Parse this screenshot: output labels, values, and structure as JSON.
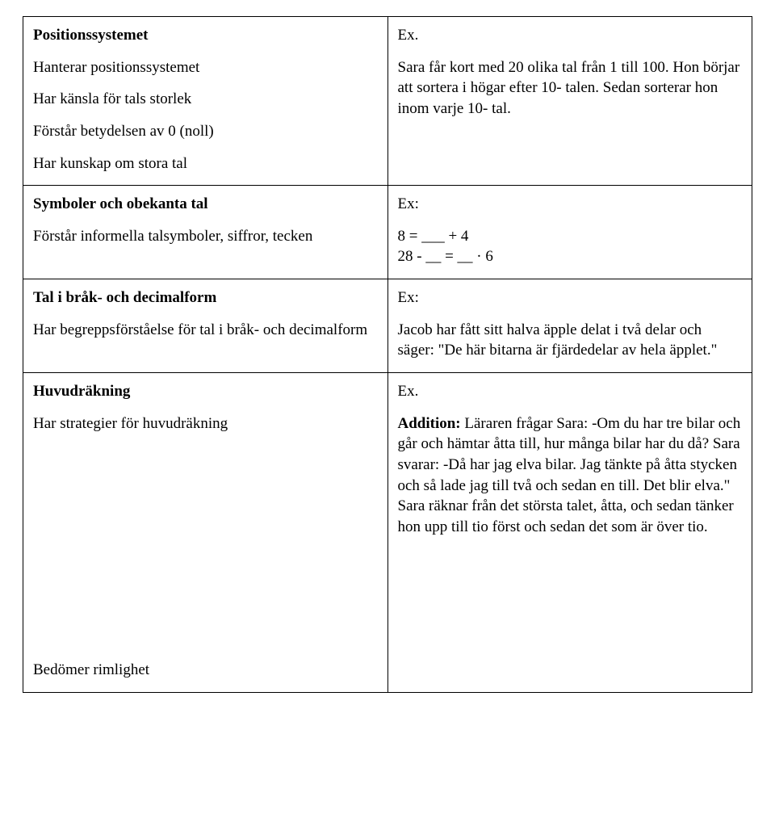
{
  "rows": [
    {
      "left": {
        "blocks": [
          {
            "html": "<span class='bold'>Positionssystemet</span>"
          },
          {
            "html": "Hanterar positionssystemet"
          },
          {
            "html": "Har känsla för tals storlek"
          },
          {
            "html": "Förstår betydelsen av 0 (noll)"
          },
          {
            "html": "Har kunskap om stora tal"
          }
        ]
      },
      "right": {
        "blocks": [
          {
            "html": "Ex."
          },
          {
            "html": "Sara får kort med 20 olika tal från 1 till 100. Hon börjar att sortera i högar efter 10- talen. Sedan sorterar hon inom varje 10- tal."
          }
        ]
      }
    },
    {
      "left": {
        "blocks": [
          {
            "html": "<span class='bold'>Symboler och obekanta tal</span>"
          },
          {
            "html": "Förstår informella talsymboler, siffror, tecken"
          }
        ]
      },
      "right": {
        "blocks": [
          {
            "html": "Ex:"
          },
          {
            "html": "8 = ___ + 4<br>28 - __ = __ · 6"
          }
        ]
      }
    },
    {
      "left": {
        "blocks": [
          {
            "html": "<span class='bold'>Tal i bråk- och decimalform</span>"
          },
          {
            "html": "Har begreppsförståelse för tal i bråk- och decimalform"
          }
        ]
      },
      "right": {
        "blocks": [
          {
            "html": "Ex:"
          },
          {
            "html": "Jacob har fått sitt halva äpple delat i två delar och säger: \"De här bitarna är fjärdedelar av hela äpplet.\""
          }
        ]
      }
    },
    {
      "left": {
        "blocks": [
          {
            "html": "<span class='bold'>Huvudräkning</span>"
          },
          {
            "html": "Har strategier för huvudräkning"
          },
          {
            "html": "Bedömer rimlighet",
            "extraTop": 280
          }
        ]
      },
      "right": {
        "blocks": [
          {
            "html": "Ex."
          },
          {
            "html": "<span class='bold'>Addition:</span> Läraren frågar Sara: -Om du har tre bilar och går och hämtar åtta till, hur många bilar har du då?  Sara svarar: -Då har jag elva bilar. Jag tänkte på åtta stycken och så lade jag till två och sedan en till. Det blir elva.\" Sara räknar från det största talet, åtta, och sedan tänker hon upp till tio först och sedan det som är över tio."
          }
        ]
      }
    }
  ]
}
